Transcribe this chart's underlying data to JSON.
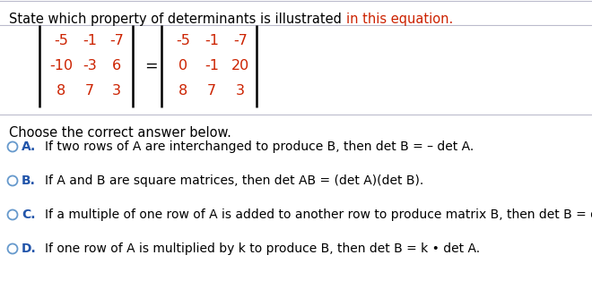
{
  "title_before": "State which property of determinants is illustrated ",
  "title_highlight": "in this equation.",
  "title_color": "#cc2200",
  "title_normal_color": "#000000",
  "matrix_left": [
    [
      "-5",
      "-1",
      "-7"
    ],
    [
      "-10",
      "-3",
      "6"
    ],
    [
      "8",
      "7",
      "3"
    ]
  ],
  "matrix_right": [
    [
      "-5",
      "-1",
      "-7"
    ],
    [
      "0",
      "-1",
      "20"
    ],
    [
      "8",
      "7",
      "3"
    ]
  ],
  "matrix_text_color": "#cc2200",
  "equals_sign": "=",
  "choose_text": "Choose the correct answer below.",
  "options": [
    {
      "label": "A.",
      "text": "If two rows of A are interchanged to produce B, then det B = – det A."
    },
    {
      "label": "B.",
      "text": "If A and B are square matrices, then det AB = (det A)(det B)."
    },
    {
      "label": "C.",
      "text": "If a multiple of one row of A is added to another row to produce matrix B, then det B = det A."
    },
    {
      "label": "D.",
      "text": "If one row of A is multiplied by k to produce B, then det B = k • det A."
    }
  ],
  "option_label_color": "#2255aa",
  "circle_color": "#6699cc",
  "bg_color": "#ffffff",
  "divider_color": "#bbbbcc",
  "font_size_title": 10.5,
  "font_size_matrix": 11.5,
  "font_size_options": 10.0,
  "font_size_choose": 10.5
}
